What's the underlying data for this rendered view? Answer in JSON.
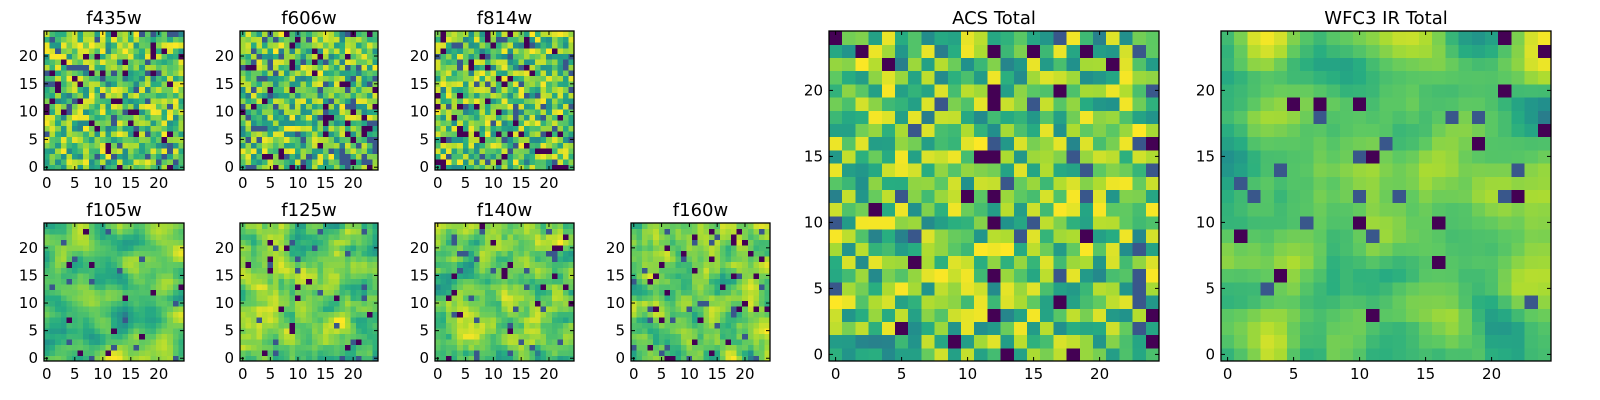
{
  "chart_data": [
    {
      "type": "heatmap",
      "title": "f435w",
      "rows": 25,
      "cols": 25,
      "seed": 11,
      "smooth": 0,
      "low_fraction": 0.06,
      "xticks": [
        "0",
        "5",
        "10",
        "15",
        "20"
      ],
      "yticks": [
        "0",
        "5",
        "10",
        "15",
        "20"
      ]
    },
    {
      "type": "heatmap",
      "title": "f606w",
      "rows": 25,
      "cols": 25,
      "seed": 23,
      "smooth": 0,
      "low_fraction": 0.07,
      "xticks": [
        "0",
        "5",
        "10",
        "15",
        "20"
      ],
      "yticks": [
        "0",
        "5",
        "10",
        "15",
        "20"
      ]
    },
    {
      "type": "heatmap",
      "title": "f814w",
      "rows": 25,
      "cols": 25,
      "seed": 37,
      "smooth": 0,
      "low_fraction": 0.06,
      "xticks": [
        "0",
        "5",
        "10",
        "15",
        "20"
      ],
      "yticks": [
        "0",
        "5",
        "10",
        "15",
        "20"
      ]
    },
    {
      "type": "heatmap",
      "title": "f105w",
      "rows": 25,
      "cols": 25,
      "seed": 41,
      "smooth": 2,
      "low_fraction": 0.02,
      "xticks": [
        "0",
        "5",
        "10",
        "15",
        "20"
      ],
      "yticks": [
        "0",
        "5",
        "10",
        "15",
        "20"
      ]
    },
    {
      "type": "heatmap",
      "title": "f125w",
      "rows": 25,
      "cols": 25,
      "seed": 53,
      "smooth": 1,
      "low_fraction": 0.03,
      "xticks": [
        "0",
        "5",
        "10",
        "15",
        "20"
      ],
      "yticks": [
        "0",
        "5",
        "10",
        "15",
        "20"
      ]
    },
    {
      "type": "heatmap",
      "title": "f140w",
      "rows": 25,
      "cols": 25,
      "seed": 67,
      "smooth": 1,
      "low_fraction": 0.03,
      "xticks": [
        "0",
        "5",
        "10",
        "15",
        "20"
      ],
      "yticks": [
        "0",
        "5",
        "10",
        "15",
        "20"
      ]
    },
    {
      "type": "heatmap",
      "title": "f160w",
      "rows": 25,
      "cols": 25,
      "seed": 79,
      "smooth": 1,
      "low_fraction": 0.04,
      "xticks": [
        "0",
        "5",
        "10",
        "15",
        "20"
      ],
      "yticks": [
        "0",
        "5",
        "10",
        "15",
        "20"
      ]
    },
    {
      "type": "heatmap",
      "title": "ACS Total",
      "rows": 25,
      "cols": 25,
      "seed": 97,
      "smooth": 0,
      "low_fraction": 0.03,
      "xticks": [
        "0",
        "5",
        "10",
        "15",
        "20"
      ],
      "yticks": [
        "0",
        "5",
        "10",
        "15",
        "20"
      ]
    },
    {
      "type": "heatmap",
      "title": "WFC3 IR Total",
      "rows": 25,
      "cols": 25,
      "seed": 113,
      "smooth": 2,
      "low_fraction": 0.02,
      "xticks": [
        "0",
        "5",
        "10",
        "15",
        "20"
      ],
      "yticks": [
        "0",
        "5",
        "10",
        "15",
        "20"
      ]
    }
  ],
  "colormap": [
    "#440154",
    "#3b528b",
    "#21918c",
    "#27ad81",
    "#5ec962",
    "#addc30",
    "#fde725"
  ]
}
